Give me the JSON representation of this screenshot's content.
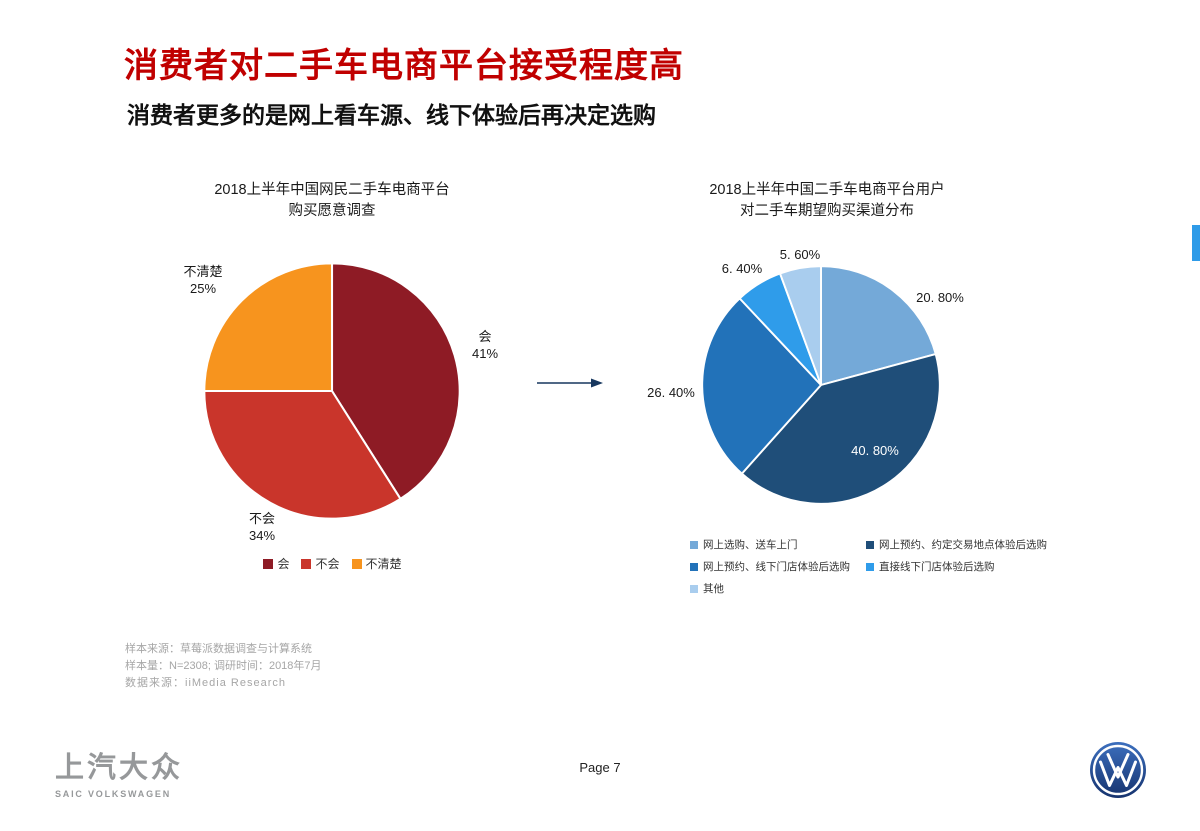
{
  "slide": {
    "title": "消费者对二手车电商平台接受程度高",
    "subtitle": "消费者更多的是网上看车源、线下体验后再决定选购",
    "page_label": "Page 7"
  },
  "colors": {
    "title_red": "#C00000",
    "arrow_blue": "#17375E",
    "edge_accent": "#2E9BE8",
    "footer_gray": "#96989A",
    "vw_blue": "#2A55A2"
  },
  "chart_data": [
    {
      "type": "pie",
      "title": "2018上半年中国网民二手车电商平台购买愿意调查",
      "title_lines": [
        "2018上半年中国网民二手车电商平台",
        "购买愿意调查"
      ],
      "labels": [
        "会",
        "不会",
        "不清楚"
      ],
      "values": [
        41,
        34,
        25
      ],
      "unit": "%",
      "pct_labels": [
        "41%",
        "34%",
        "25%"
      ],
      "colors": [
        "#8E1B25",
        "#C9352B",
        "#F7941E"
      ],
      "legend_position": "bottom",
      "start_angle_deg": 0,
      "direction": "clockwise"
    },
    {
      "type": "pie",
      "title": "2018上半年中国二手车电商平台用户对二手车期望购买渠道分布",
      "title_lines": [
        "2018上半年中国二手车电商平台用户",
        "对二手车期望购买渠道分布"
      ],
      "labels": [
        "网上选购、送车上门",
        "网上预约、约定交易地点体验后选购",
        "网上预约、线下门店体验后选购",
        "直接线下门店体验后选购",
        "其他"
      ],
      "values": [
        20.8,
        40.8,
        26.4,
        6.4,
        5.6
      ],
      "unit": "%",
      "pct_labels": [
        "20. 80%",
        "40. 80%",
        "26. 40%",
        "6. 40%",
        "5. 60%"
      ],
      "colors": [
        "#74A9D8",
        "#1F4E79",
        "#2272B9",
        "#2F9CEA",
        "#A9CDEE"
      ],
      "legend_position": "bottom",
      "start_angle_deg": 0,
      "direction": "clockwise"
    }
  ],
  "source_notes": [
    "样本来源：草莓派数据调查与计算系统",
    "样本量：N=2308;  调研时间：2018年7月",
    "数据来源：iiMedia Research"
  ],
  "footer": {
    "brand_cn": "上汽大众",
    "brand_en": "SAIC VOLKSWAGEN"
  }
}
